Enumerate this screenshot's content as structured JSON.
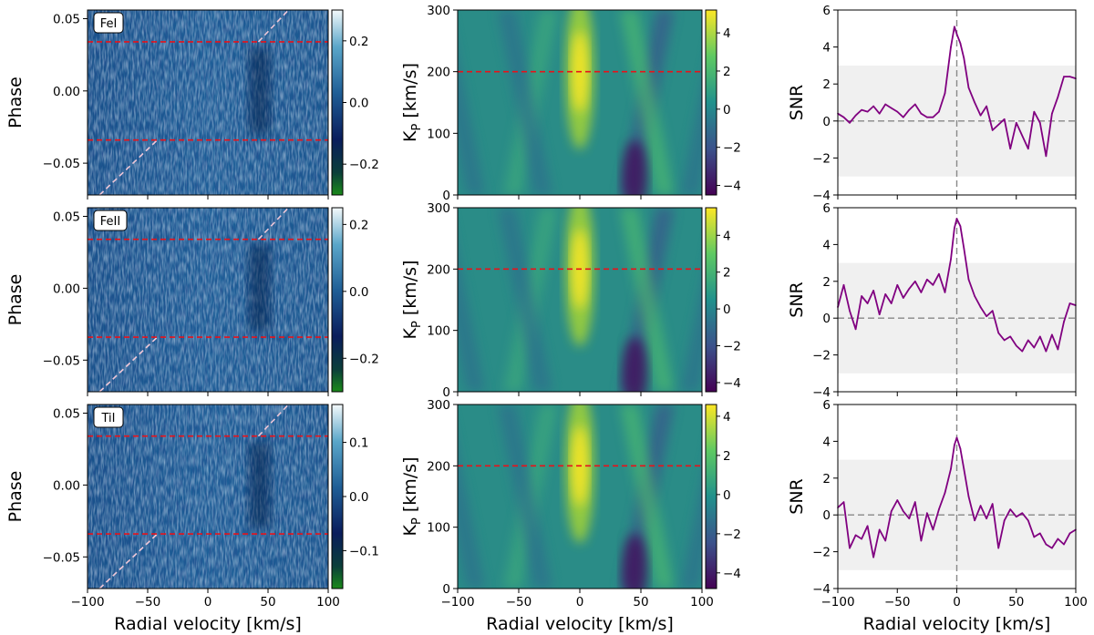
{
  "figure": {
    "xlabel": "Radial velocity [km/s]",
    "phase_ylabel": "Phase",
    "kp_ylabel_main": "K",
    "kp_ylabel_sub": "P",
    "kp_ylabel_unit": " [km/s]",
    "snr_ylabel": "SNR"
  },
  "colors": {
    "trail_low": "#1a8a1a",
    "trail_mid": "#0f3d78",
    "trail_high": "#f4f9fb",
    "viridis_low": "#440154",
    "viridis_high": "#fde725",
    "red_line": "#e8121a",
    "transit_line": "#f0c8d8",
    "snr_line": "#800080",
    "snr_band": "#f0f0f0",
    "zero_line": "#888888"
  },
  "chart_data": [
    {
      "type": "heatmap",
      "panel": "trail",
      "row": 0,
      "label": "FeI",
      "label_main": "Fe",
      "label_ion": "I",
      "xlim": [
        -100,
        100
      ],
      "ylim": [
        -0.072,
        0.056
      ],
      "xticks": [
        "−100",
        "−50",
        "0",
        "50",
        "100"
      ],
      "yticks": [
        {
          "v": 0.05,
          "t": "0.05"
        },
        {
          "v": 0.0,
          "t": "0.00"
        },
        {
          "v": -0.05,
          "t": "−0.05"
        }
      ],
      "red_lines_phase": [
        0.034,
        -0.034
      ],
      "transit_segments": [
        [
          [
            -90,
            -0.072
          ],
          [
            -42,
            -0.034
          ]
        ],
        [
          [
            42,
            0.034
          ],
          [
            67,
            0.056
          ]
        ]
      ],
      "colorbar": {
        "min": -0.3,
        "max": 0.3,
        "ticks": [
          {
            "v": 0.2,
            "t": "0.2"
          },
          {
            "v": 0.0,
            "t": "0.0"
          },
          {
            "v": -0.2,
            "t": "−0.2"
          }
        ]
      }
    },
    {
      "type": "heatmap",
      "panel": "trail",
      "row": 1,
      "label": "FeII",
      "label_main": "Fe",
      "label_ion": "II",
      "xlim": [
        -100,
        100
      ],
      "ylim": [
        -0.072,
        0.056
      ],
      "xticks": [
        "−100",
        "−50",
        "0",
        "50",
        "100"
      ],
      "yticks": [
        {
          "v": 0.05,
          "t": "0.05"
        },
        {
          "v": 0.0,
          "t": "0.00"
        },
        {
          "v": -0.05,
          "t": "−0.05"
        }
      ],
      "red_lines_phase": [
        0.034,
        -0.034
      ],
      "transit_segments": [
        [
          [
            -90,
            -0.072
          ],
          [
            -42,
            -0.034
          ]
        ],
        [
          [
            42,
            0.034
          ],
          [
            67,
            0.056
          ]
        ]
      ],
      "colorbar": {
        "min": -0.3,
        "max": 0.25,
        "ticks": [
          {
            "v": 0.2,
            "t": "0.2"
          },
          {
            "v": 0.0,
            "t": "0.0"
          },
          {
            "v": -0.2,
            "t": "−0.2"
          }
        ]
      }
    },
    {
      "type": "heatmap",
      "panel": "trail",
      "row": 2,
      "label": "TiI",
      "label_main": "Ti",
      "label_ion": "I",
      "xlim": [
        -100,
        100
      ],
      "ylim": [
        -0.072,
        0.056
      ],
      "xticks": [
        "−100",
        "−50",
        "0",
        "50",
        "100"
      ],
      "yticks": [
        {
          "v": 0.05,
          "t": "0.05"
        },
        {
          "v": 0.0,
          "t": "0.00"
        },
        {
          "v": -0.05,
          "t": "−0.05"
        }
      ],
      "red_lines_phase": [
        0.034,
        -0.034
      ],
      "transit_segments": [
        [
          [
            -90,
            -0.072
          ],
          [
            -42,
            -0.034
          ]
        ],
        [
          [
            42,
            0.034
          ],
          [
            67,
            0.056
          ]
        ]
      ],
      "colorbar": {
        "min": -0.17,
        "max": 0.17,
        "ticks": [
          {
            "v": 0.1,
            "t": "0.1"
          },
          {
            "v": 0.0,
            "t": "0.0"
          },
          {
            "v": -0.1,
            "t": "−0.1"
          }
        ]
      }
    },
    {
      "type": "heatmap",
      "panel": "kp",
      "row": 0,
      "species": "FeI",
      "xlim": [
        -100,
        100
      ],
      "ylim": [
        0,
        300
      ],
      "xticks": [
        "−100",
        "−50",
        "0",
        "50",
        "100"
      ],
      "yticks": [
        {
          "v": 0,
          "t": "0"
        },
        {
          "v": 100,
          "t": "100"
        },
        {
          "v": 200,
          "t": "200"
        },
        {
          "v": 300,
          "t": "300"
        }
      ],
      "red_line_kp": 200,
      "colorbar": {
        "min": -4.5,
        "max": 5.2,
        "ticks": [
          {
            "v": 4,
            "t": "4"
          },
          {
            "v": 2,
            "t": "2"
          },
          {
            "v": 0,
            "t": "0"
          },
          {
            "v": -2,
            "t": "−2"
          },
          {
            "v": -4,
            "t": "−4"
          }
        ]
      }
    },
    {
      "type": "heatmap",
      "panel": "kp",
      "row": 1,
      "species": "FeII",
      "xlim": [
        -100,
        100
      ],
      "ylim": [
        0,
        300
      ],
      "xticks": [
        "−100",
        "−50",
        "0",
        "50",
        "100"
      ],
      "yticks": [
        {
          "v": 0,
          "t": "0"
        },
        {
          "v": 100,
          "t": "100"
        },
        {
          "v": 200,
          "t": "200"
        },
        {
          "v": 300,
          "t": "300"
        }
      ],
      "red_line_kp": 200,
      "colorbar": {
        "min": -4.5,
        "max": 5.5,
        "ticks": [
          {
            "v": 4,
            "t": "4"
          },
          {
            "v": 2,
            "t": "2"
          },
          {
            "v": 0,
            "t": "0"
          },
          {
            "v": -2,
            "t": "−2"
          },
          {
            "v": -4,
            "t": "−4"
          }
        ]
      }
    },
    {
      "type": "heatmap",
      "panel": "kp",
      "row": 2,
      "species": "TiI",
      "xlim": [
        -100,
        100
      ],
      "ylim": [
        0,
        300
      ],
      "xticks": [
        "−100",
        "−50",
        "0",
        "50",
        "100"
      ],
      "yticks": [
        {
          "v": 0,
          "t": "0"
        },
        {
          "v": 100,
          "t": "100"
        },
        {
          "v": 200,
          "t": "200"
        },
        {
          "v": 300,
          "t": "300"
        }
      ],
      "red_line_kp": 200,
      "colorbar": {
        "min": -4.8,
        "max": 4.6,
        "ticks": [
          {
            "v": 4,
            "t": "4"
          },
          {
            "v": 2,
            "t": "2"
          },
          {
            "v": 0,
            "t": "0"
          },
          {
            "v": -2,
            "t": "−2"
          },
          {
            "v": -4,
            "t": "−4"
          }
        ]
      }
    },
    {
      "type": "line",
      "panel": "snr",
      "row": 0,
      "species": "FeI",
      "xlim": [
        -100,
        100
      ],
      "ylim": [
        -4,
        6
      ],
      "band": [
        -3,
        3
      ],
      "xticks": [
        "−100",
        "−50",
        "0",
        "50",
        "100"
      ],
      "yticks": [
        {
          "v": -4,
          "t": "−4"
        },
        {
          "v": -2,
          "t": "−2"
        },
        {
          "v": 0,
          "t": "0"
        },
        {
          "v": 2,
          "t": "2"
        },
        {
          "v": 4,
          "t": "4"
        },
        {
          "v": 6,
          "t": "6"
        }
      ],
      "x": [
        -100,
        -95,
        -90,
        -85,
        -80,
        -75,
        -70,
        -65,
        -60,
        -55,
        -50,
        -45,
        -40,
        -35,
        -30,
        -25,
        -20,
        -15,
        -10,
        -5,
        -2,
        0,
        3,
        6,
        10,
        15,
        20,
        25,
        30,
        35,
        40,
        45,
        50,
        55,
        60,
        65,
        70,
        75,
        80,
        85,
        90,
        95,
        100
      ],
      "y": [
        0.4,
        0.2,
        -0.1,
        0.3,
        0.6,
        0.5,
        0.8,
        0.4,
        0.9,
        0.7,
        0.5,
        0.2,
        0.6,
        0.9,
        0.4,
        0.2,
        0.2,
        0.5,
        1.5,
        4.0,
        5.1,
        4.7,
        4.2,
        3.4,
        1.8,
        1.0,
        0.3,
        0.8,
        -0.5,
        -0.2,
        0.1,
        -1.5,
        -0.1,
        -0.8,
        -1.5,
        0.5,
        -0.1,
        -1.9,
        0.4,
        1.3,
        2.4,
        2.4,
        2.3
      ]
    },
    {
      "type": "line",
      "panel": "snr",
      "row": 1,
      "species": "FeII",
      "xlim": [
        -100,
        100
      ],
      "ylim": [
        -4,
        6
      ],
      "band": [
        -3,
        3
      ],
      "xticks": [
        "−100",
        "−50",
        "0",
        "50",
        "100"
      ],
      "yticks": [
        {
          "v": -4,
          "t": "−4"
        },
        {
          "v": -2,
          "t": "−2"
        },
        {
          "v": 0,
          "t": "0"
        },
        {
          "v": 2,
          "t": "2"
        },
        {
          "v": 4,
          "t": "4"
        },
        {
          "v": 6,
          "t": "6"
        }
      ],
      "x": [
        -100,
        -95,
        -90,
        -85,
        -80,
        -75,
        -70,
        -65,
        -60,
        -55,
        -50,
        -45,
        -40,
        -35,
        -30,
        -25,
        -20,
        -15,
        -10,
        -5,
        -2,
        0,
        3,
        6,
        10,
        15,
        20,
        25,
        30,
        35,
        40,
        45,
        50,
        55,
        60,
        65,
        70,
        75,
        80,
        85,
        90,
        95,
        100
      ],
      "y": [
        0.6,
        1.8,
        0.4,
        -0.6,
        1.2,
        0.8,
        1.5,
        0.2,
        1.3,
        0.8,
        1.8,
        1.1,
        1.6,
        2.0,
        1.4,
        2.1,
        1.8,
        2.4,
        1.4,
        3.2,
        4.9,
        5.4,
        5.0,
        3.8,
        2.1,
        1.2,
        0.6,
        0.1,
        0.4,
        -0.8,
        -1.2,
        -1.0,
        -1.5,
        -1.8,
        -1.2,
        -1.6,
        -1.0,
        -1.8,
        -0.9,
        -1.7,
        -0.2,
        0.8,
        0.7
      ]
    },
    {
      "type": "line",
      "panel": "snr",
      "row": 2,
      "species": "TiI",
      "xlim": [
        -100,
        100
      ],
      "ylim": [
        -4,
        6
      ],
      "band": [
        -3,
        3
      ],
      "xticks": [
        "−100",
        "−50",
        "0",
        "50",
        "100"
      ],
      "yticks": [
        {
          "v": -4,
          "t": "−4"
        },
        {
          "v": -2,
          "t": "−2"
        },
        {
          "v": 0,
          "t": "0"
        },
        {
          "v": 2,
          "t": "2"
        },
        {
          "v": 4,
          "t": "4"
        },
        {
          "v": 6,
          "t": "6"
        }
      ],
      "x": [
        -100,
        -95,
        -90,
        -85,
        -80,
        -75,
        -70,
        -65,
        -60,
        -55,
        -50,
        -45,
        -40,
        -35,
        -30,
        -25,
        -20,
        -15,
        -10,
        -5,
        -2,
        0,
        3,
        6,
        10,
        15,
        20,
        25,
        30,
        35,
        40,
        45,
        50,
        55,
        60,
        65,
        70,
        75,
        80,
        85,
        90,
        95,
        100
      ],
      "y": [
        0.4,
        0.7,
        -1.8,
        -1.1,
        -1.3,
        -0.6,
        -2.3,
        -0.8,
        -1.4,
        0.2,
        0.8,
        0.2,
        -0.2,
        0.7,
        -1.4,
        0.1,
        -0.8,
        0.3,
        1.2,
        2.5,
        3.8,
        4.2,
        3.6,
        2.5,
        1.0,
        -0.3,
        0.5,
        -0.2,
        0.6,
        -1.8,
        -0.3,
        0.3,
        -0.1,
        0.1,
        -0.3,
        -1.2,
        -1.0,
        -1.6,
        -1.8,
        -1.3,
        -1.6,
        -1.0,
        -0.8
      ]
    }
  ]
}
